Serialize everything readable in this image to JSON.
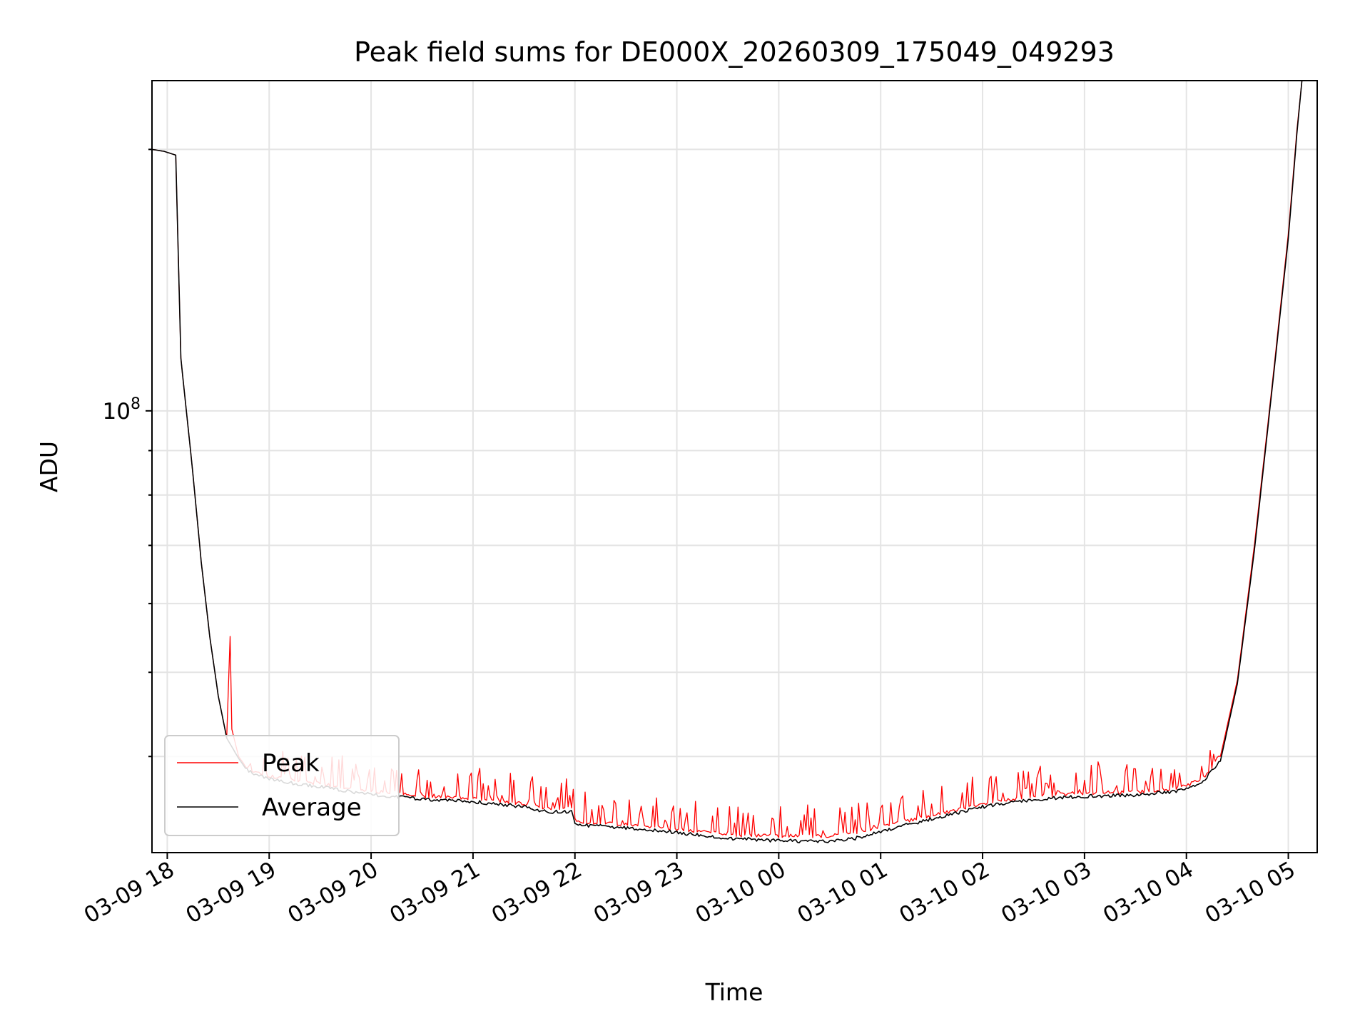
{
  "figure": {
    "background": "#ffffff"
  },
  "chart_data": {
    "type": "line",
    "title": "Peak field sums for DE000X_20260309_175049_049293",
    "xlabel": "Time",
    "ylabel": "ADU",
    "x_tick_labels": [
      "03-09 18",
      "03-09 19",
      "03-09 20",
      "03-09 21",
      "03-09 22",
      "03-09 23",
      "03-10 00",
      "03-10 01",
      "03-10 02",
      "03-10 03",
      "03-10 04",
      "03-10 05"
    ],
    "y_tick_label": {
      "base": "10",
      "exponent": "8"
    },
    "y_scale": "log",
    "ylim": [
      31000000,
      240000000
    ],
    "xlim": [
      "2026-03-09 17:51",
      "2026-03-10 05:17"
    ],
    "grid": true,
    "legend": {
      "placement": "lower left",
      "entries": [
        "Peak",
        "Average"
      ]
    },
    "series": [
      {
        "name": "Peak",
        "color": "#ff0000",
        "x": [
          "2026-03-09 17:51",
          "2026-03-09 17:58",
          "2026-03-09 18:05",
          "2026-03-09 18:08",
          "2026-03-09 18:15",
          "2026-03-09 18:20",
          "2026-03-09 18:25",
          "2026-03-09 18:30",
          "2026-03-09 18:35",
          "2026-03-09 18:37",
          "2026-03-09 18:38",
          "2026-03-09 18:42",
          "2026-03-09 18:46",
          "2026-03-09 18:50",
          "2026-03-09 19:00",
          "2026-03-09 19:15",
          "2026-03-09 19:30",
          "2026-03-09 19:45",
          "2026-03-09 20:00",
          "2026-03-09 20:30",
          "2026-03-09 21:00",
          "2026-03-09 21:30",
          "2026-03-09 21:45",
          "2026-03-09 21:58",
          "2026-03-09 22:00",
          "2026-03-09 22:30",
          "2026-03-09 23:00",
          "2026-03-09 23:30",
          "2026-03-10 00:00",
          "2026-03-10 00:30",
          "2026-03-10 00:45",
          "2026-03-10 01:00",
          "2026-03-10 01:30",
          "2026-03-10 02:00",
          "2026-03-10 02:30",
          "2026-03-10 03:00",
          "2026-03-10 03:30",
          "2026-03-10 03:50",
          "2026-03-10 04:00",
          "2026-03-10 04:10",
          "2026-03-10 04:20",
          "2026-03-10 04:30",
          "2026-03-10 04:40",
          "2026-03-10 04:50",
          "2026-03-10 05:00",
          "2026-03-10 05:05",
          "2026-03-10 05:08"
        ],
        "values": [
          200000000,
          199000000,
          197000000,
          115000000,
          85000000,
          67000000,
          55000000,
          47000000,
          42000000,
          55000000,
          43000000,
          40000000,
          39000000,
          38500000,
          38000000,
          37500000,
          37200000,
          36800000,
          36500000,
          36000000,
          35800000,
          35300000,
          34800000,
          34900000,
          33700000,
          33400000,
          33000000,
          32500000,
          32400000,
          32400000,
          32700000,
          33200000,
          34200000,
          35300000,
          36000000,
          36300000,
          36400000,
          36700000,
          37000000,
          37800000,
          40000000,
          49000000,
          70000000,
          105000000,
          160000000,
          210000000,
          240000000
        ]
      },
      {
        "name": "Average",
        "color": "#000000",
        "x": [
          "2026-03-09 17:51",
          "2026-03-09 17:58",
          "2026-03-09 18:05",
          "2026-03-09 18:08",
          "2026-03-09 18:15",
          "2026-03-09 18:20",
          "2026-03-09 18:25",
          "2026-03-09 18:30",
          "2026-03-09 18:35",
          "2026-03-09 18:42",
          "2026-03-09 18:46",
          "2026-03-09 18:50",
          "2026-03-09 19:00",
          "2026-03-09 19:15",
          "2026-03-09 19:30",
          "2026-03-09 19:45",
          "2026-03-09 20:00",
          "2026-03-09 20:30",
          "2026-03-09 21:00",
          "2026-03-09 21:30",
          "2026-03-09 21:45",
          "2026-03-09 21:58",
          "2026-03-09 22:00",
          "2026-03-09 22:30",
          "2026-03-09 23:00",
          "2026-03-09 23:30",
          "2026-03-10 00:00",
          "2026-03-10 00:30",
          "2026-03-10 00:45",
          "2026-03-10 01:00",
          "2026-03-10 01:30",
          "2026-03-10 02:00",
          "2026-03-10 02:30",
          "2026-03-10 03:00",
          "2026-03-10 03:30",
          "2026-03-10 03:50",
          "2026-03-10 04:00",
          "2026-03-10 04:10",
          "2026-03-10 04:20",
          "2026-03-10 04:30",
          "2026-03-10 04:40",
          "2026-03-10 04:50",
          "2026-03-10 05:00",
          "2026-03-10 05:05",
          "2026-03-10 05:08"
        ],
        "values": [
          200000000,
          199000000,
          197000000,
          115000000,
          85000000,
          67000000,
          55000000,
          47000000,
          42000000,
          39800000,
          38800000,
          38300000,
          37700000,
          37200000,
          36900000,
          36500000,
          36200000,
          35700000,
          35500000,
          35000000,
          34500000,
          34600000,
          33400000,
          33100000,
          32700000,
          32200000,
          32000000,
          31900000,
          32200000,
          32800000,
          33900000,
          35000000,
          35700000,
          36000000,
          36100000,
          36400000,
          36700000,
          37500000,
          39500000,
          48500000,
          69000000,
          104000000,
          158000000,
          208000000,
          240000000
        ]
      }
    ]
  }
}
